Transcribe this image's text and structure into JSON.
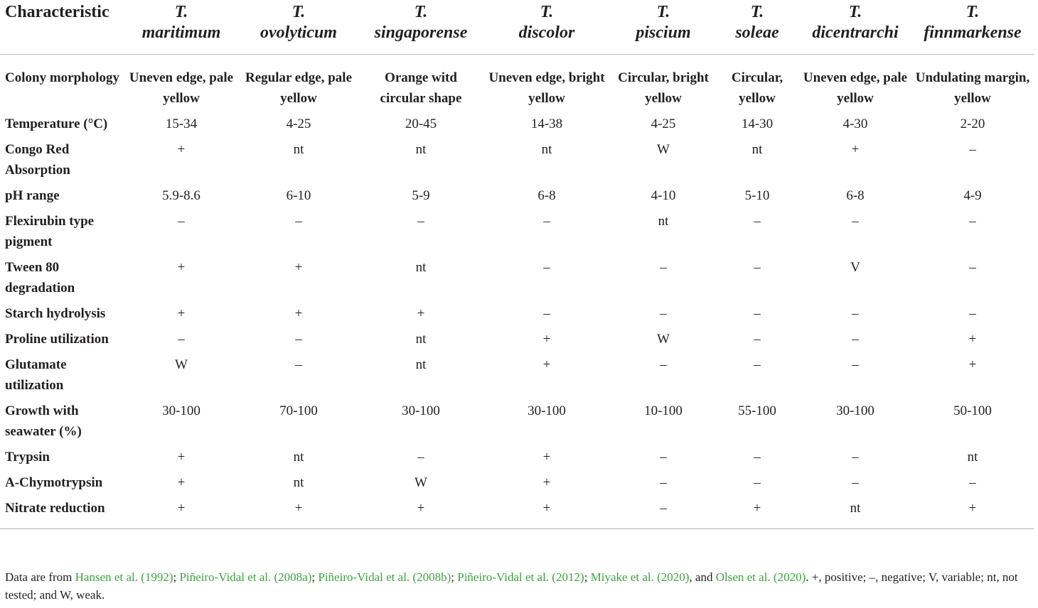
{
  "table": {
    "header": {
      "characteristic": "Characteristic",
      "species": [
        {
          "genus": "T.",
          "epithet": "maritimum"
        },
        {
          "genus": "T.",
          "epithet": "ovolyticum"
        },
        {
          "genus": "T.",
          "epithet": "singaporense"
        },
        {
          "genus": "T.",
          "epithet": "discolor"
        },
        {
          "genus": "T.",
          "epithet": "piscium"
        },
        {
          "genus": "T.",
          "epithet": "soleae"
        },
        {
          "genus": "T.",
          "epithet": "dicentrarchi"
        },
        {
          "genus": "T.",
          "epithet": "finnmarkense"
        }
      ]
    },
    "rows": [
      {
        "label": "Colony morphology",
        "values": [
          "Uneven edge, pale yellow",
          "Regular edge, pale yellow",
          "Orange witd circular shape",
          "Uneven edge, bright yellow",
          "Circular, bright yellow",
          "Circular, yellow",
          "Uneven edge, pale yellow",
          "Undulating margin, yellow"
        ]
      },
      {
        "label": "Temperature (°C)",
        "values": [
          "15-34",
          "4-25",
          "20-45",
          "14-38",
          "4-25",
          "14-30",
          "4-30",
          "2-20"
        ]
      },
      {
        "label": "Congo Red Absorption",
        "values": [
          "+",
          "nt",
          "nt",
          "nt",
          "W",
          "nt",
          "+",
          "–"
        ]
      },
      {
        "label": "pH range",
        "values": [
          "5.9-8.6",
          "6-10",
          "5-9",
          "6-8",
          "4-10",
          "5-10",
          "6-8",
          "4-9"
        ]
      },
      {
        "label": "Flexirubin type pigment",
        "values": [
          "–",
          "–",
          "–",
          "–",
          "nt",
          "–",
          "–",
          "–"
        ]
      },
      {
        "label": "Tween 80 degradation",
        "values": [
          "+",
          "+",
          "nt",
          "–",
          "–",
          "–",
          "V",
          "–"
        ]
      },
      {
        "label": "Starch hydrolysis",
        "values": [
          "+",
          "+",
          "+",
          "–",
          "–",
          "–",
          "–",
          "–"
        ]
      },
      {
        "label": "Proline utilization",
        "values": [
          "–",
          "–",
          "nt",
          "+",
          "W",
          "–",
          "–",
          "+"
        ]
      },
      {
        "label": "Glutamate utilization",
        "values": [
          "W",
          "–",
          "nt",
          "+",
          "–",
          "–",
          "–",
          "+"
        ]
      },
      {
        "label": "Growth with seawater (%)",
        "values": [
          "30-100",
          "70-100",
          "30-100",
          "30-100",
          "10-100",
          "55-100",
          "30-100",
          "50-100"
        ]
      },
      {
        "label": "Trypsin",
        "values": [
          "+",
          "nt",
          "–",
          "+",
          "–",
          "–",
          "–",
          "nt"
        ]
      },
      {
        "label": "A-Chymotrypsin",
        "values": [
          "+",
          "nt",
          "W",
          "+",
          "–",
          "–",
          "–",
          "–"
        ]
      },
      {
        "label": "Nitrate reduction",
        "values": [
          "+",
          "+",
          "+",
          "+",
          "–",
          "+",
          "nt",
          "+"
        ]
      }
    ]
  },
  "footnote": {
    "prefix": "Data are from ",
    "refs": [
      "Hansen et al. (1992)",
      "Piñeiro-Vidal et al. (2008a)",
      "Piñeiro-Vidal et al. (2008b)",
      "Piñeiro-Vidal et al. (2012)",
      "Miyake et al. (2020)",
      "Olsen et al. (2020)"
    ],
    "sep1": "; ",
    "sep2": "; ",
    "sep3": "; ",
    "sep4": "; ",
    "sep5": ", and ",
    "suffix": ". +, positive; –, negative; V, variable; nt, not tested; and W, weak.",
    "colors": {
      "ref": "#3aa53a",
      "text": "#231f20"
    }
  }
}
